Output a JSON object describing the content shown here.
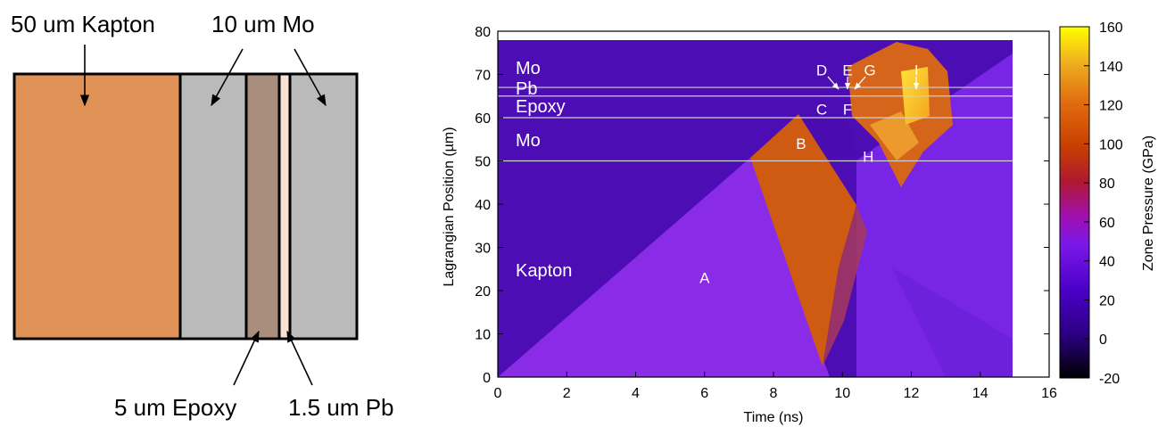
{
  "schematic": {
    "layers": [
      {
        "name": "50 um Kapton",
        "color": "#e09155"
      },
      {
        "name": "10 um Mo",
        "color": "#bababa"
      },
      {
        "name": "5 um Epoxy",
        "color": "#a98d7d"
      },
      {
        "name": "1.5 um Pb",
        "color": "#f7e2d3"
      },
      {
        "name": "10 um Mo",
        "color": "#bababa"
      }
    ],
    "labels": {
      "kapton": "50 um Kapton",
      "mo": "10 um Mo",
      "epoxy": "5 um Epoxy",
      "pb": "1.5 um Pb"
    }
  },
  "chart_data": {
    "type": "heatmap",
    "xlabel": "Time (ns)",
    "ylabel": "Lagrangian Position (µm)",
    "colorbar_label": "Zone Pressure (GPa)",
    "xlim": [
      0,
      16
    ],
    "ylim": [
      0,
      80
    ],
    "xticks": [
      "0",
      "2",
      "4",
      "6",
      "8",
      "10",
      "12",
      "14",
      "16"
    ],
    "yticks": [
      "0",
      "10",
      "20",
      "30",
      "40",
      "50",
      "60",
      "70",
      "80"
    ],
    "colorbar_range": [
      -20,
      160
    ],
    "colorbar_ticks": [
      "-20",
      "0",
      "20",
      "40",
      "60",
      "80",
      "100",
      "120",
      "140",
      "160"
    ],
    "interfaces_um": [
      50,
      60,
      65,
      67
    ],
    "region_labels": [
      "Mo",
      "Pb",
      "Epoxy",
      "Mo",
      "Kapton"
    ],
    "points": [
      {
        "label": "A",
        "x": 6.0,
        "y": 23
      },
      {
        "label": "B",
        "x": 8.8,
        "y": 54
      },
      {
        "label": "C",
        "x": 9.4,
        "y": 62
      },
      {
        "label": "D",
        "x": 9.4,
        "y": 71
      },
      {
        "label": "E",
        "x": 10.15,
        "y": 71
      },
      {
        "label": "F",
        "x": 10.15,
        "y": 62
      },
      {
        "label": "G",
        "x": 10.8,
        "y": 71
      },
      {
        "label": "H",
        "x": 10.75,
        "y": 51
      },
      {
        "label": "I",
        "x": 12.15,
        "y": 71
      }
    ]
  }
}
